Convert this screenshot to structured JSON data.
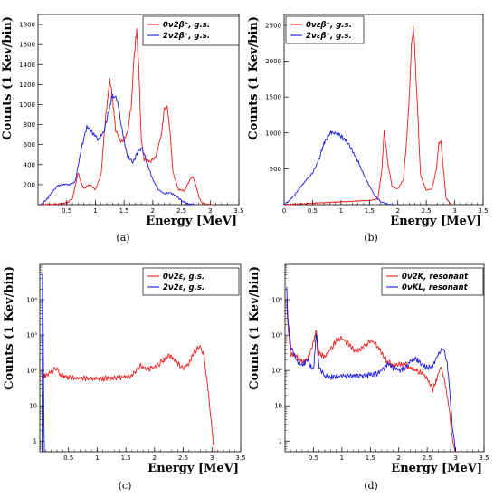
{
  "colors": {
    "red": "#ee1c1c",
    "blue": "#1818e6",
    "axis": "#000000"
  },
  "chart_data": [
    {
      "id": "a",
      "type": "line",
      "caption": "(a)",
      "xlabel": "Energy [MeV]",
      "ylabel": "Counts (1 Kev/bin)",
      "xlim": [
        0,
        3.5
      ],
      "ylim": [
        0,
        1900
      ],
      "yscale": "linear",
      "xticks": [
        "0.5",
        "1",
        "1.5",
        "2",
        "2.5",
        "3",
        "3.5"
      ],
      "xtick_values": [
        0.5,
        1,
        1.5,
        2,
        2.5,
        3,
        3.5
      ],
      "yticks": [
        "200",
        "400",
        "600",
        "800",
        "1000",
        "1200",
        "1400",
        "1600",
        "1800"
      ],
      "ytick_values": [
        200,
        400,
        600,
        800,
        1000,
        1200,
        1400,
        1600,
        1800
      ],
      "legend_position": "top-right",
      "series": [
        {
          "name": "0ν2β⁺, g.s.",
          "color": "red",
          "x": [
            0.05,
            0.3,
            0.5,
            0.6,
            0.7,
            0.75,
            0.8,
            0.9,
            1.0,
            1.1,
            1.15,
            1.2,
            1.25,
            1.3,
            1.35,
            1.45,
            1.55,
            1.62,
            1.68,
            1.72,
            1.76,
            1.8,
            1.85,
            1.95,
            2.05,
            2.15,
            2.2,
            2.25,
            2.3,
            2.35,
            2.45,
            2.55,
            2.65,
            2.7,
            2.75,
            2.8,
            2.85,
            2.95,
            3.05
          ],
          "y": [
            0,
            5,
            15,
            60,
            320,
            220,
            160,
            200,
            150,
            300,
            700,
            1000,
            1250,
            1050,
            750,
            620,
            700,
            950,
            1500,
            1750,
            1300,
            650,
            450,
            430,
            480,
            700,
            950,
            1000,
            750,
            320,
            150,
            140,
            250,
            280,
            200,
            80,
            20,
            0,
            0
          ]
        },
        {
          "name": "2ν2β⁺, g.s.",
          "color": "blue",
          "x": [
            0.05,
            0.15,
            0.25,
            0.35,
            0.45,
            0.55,
            0.65,
            0.75,
            0.85,
            0.95,
            1.05,
            1.15,
            1.25,
            1.3,
            1.38,
            1.45,
            1.55,
            1.65,
            1.75,
            1.82,
            1.9,
            2.0,
            2.1,
            2.2,
            2.3,
            2.4,
            2.5,
            2.6,
            2.7
          ],
          "y": [
            0,
            50,
            130,
            190,
            200,
            200,
            230,
            550,
            780,
            720,
            650,
            730,
            980,
            1100,
            1050,
            800,
            500,
            420,
            540,
            560,
            420,
            250,
            150,
            110,
            120,
            90,
            40,
            10,
            0
          ]
        }
      ]
    },
    {
      "id": "b",
      "type": "line",
      "caption": "(b)",
      "xlabel": "Energy [MeV]",
      "ylabel": "Counts (1 Kev/bin)",
      "xlim": [
        0,
        3.5
      ],
      "ylim": [
        0,
        2650
      ],
      "yscale": "linear",
      "xticks": [
        "0",
        "0.5",
        "1",
        "1.5",
        "2",
        "2.5",
        "3",
        "3.5"
      ],
      "xtick_values": [
        0,
        0.5,
        1,
        1.5,
        2,
        2.5,
        3,
        3.5
      ],
      "yticks": [
        "500",
        "1000",
        "1500",
        "2000",
        "2500"
      ],
      "ytick_values": [
        500,
        1000,
        1500,
        2000,
        2500
      ],
      "legend_position": "top-left",
      "series": [
        {
          "name": "0νεβ⁺, g.s.",
          "color": "red",
          "x": [
            0.0,
            0.5,
            1.0,
            1.5,
            1.65,
            1.72,
            1.76,
            1.82,
            1.9,
            2.0,
            2.1,
            2.18,
            2.25,
            2.28,
            2.32,
            2.4,
            2.5,
            2.6,
            2.68,
            2.72,
            2.76,
            2.8,
            2.85,
            2.95
          ],
          "y": [
            0,
            20,
            40,
            60,
            80,
            500,
            1050,
            600,
            250,
            220,
            350,
            1200,
            2350,
            2450,
            1800,
            400,
            200,
            220,
            500,
            850,
            880,
            500,
            80,
            0
          ]
        },
        {
          "name": "2νεβ⁺, g.s.",
          "color": "blue",
          "x": [
            0.0,
            0.1,
            0.2,
            0.3,
            0.4,
            0.5,
            0.6,
            0.7,
            0.8,
            0.9,
            1.0,
            1.1,
            1.2,
            1.3,
            1.4,
            1.5,
            1.6,
            1.7,
            1.8,
            1.9
          ],
          "y": [
            0,
            60,
            150,
            260,
            350,
            440,
            600,
            850,
            990,
            1000,
            950,
            880,
            760,
            600,
            420,
            260,
            120,
            40,
            10,
            0
          ]
        }
      ]
    },
    {
      "id": "c",
      "type": "line",
      "caption": "(c)",
      "xlabel": "Energy [MeV]",
      "ylabel": "Counts (1 Kev/bin)",
      "xlim": [
        0,
        3.5
      ],
      "ylim": [
        0.5,
        100000
      ],
      "yscale": "log",
      "xticks": [
        "0.5",
        "1",
        "1.5",
        "2",
        "2.5",
        "3",
        "3.5"
      ],
      "xtick_values": [
        0.5,
        1,
        1.5,
        2,
        2.5,
        3,
        3.5
      ],
      "yticks": [
        "1",
        "10",
        "10²",
        "10³",
        "10⁴"
      ],
      "ytick_values": [
        1,
        10,
        100,
        1000,
        10000
      ],
      "legend_position": "top-right",
      "series": [
        {
          "name": "0ν2ε, g.s.",
          "color": "red",
          "x": [
            0.05,
            0.1,
            0.2,
            0.28,
            0.35,
            0.5,
            0.7,
            1.0,
            1.3,
            1.6,
            1.75,
            1.85,
            2.0,
            2.15,
            2.25,
            2.35,
            2.5,
            2.6,
            2.7,
            2.78,
            2.85,
            2.92,
            2.98,
            3.02,
            3.05
          ],
          "y": [
            70,
            75,
            90,
            120,
            80,
            65,
            60,
            60,
            62,
            70,
            140,
            110,
            120,
            200,
            280,
            200,
            110,
            160,
            350,
            480,
            300,
            40,
            5,
            1,
            0.5
          ]
        },
        {
          "name": "2ν2ε, g.s.",
          "color": "blue",
          "x": [
            0.04,
            0.045,
            0.05,
            0.06,
            0.07,
            0.08
          ],
          "y": [
            0.5,
            50000,
            30000,
            1000,
            5,
            0.5
          ]
        }
      ]
    },
    {
      "id": "d",
      "type": "line",
      "caption": "(d)",
      "xlabel": "Energy [MeV]",
      "ylabel": "Counts (1 Kev/bin)",
      "xlim": [
        0,
        3.5
      ],
      "ylim": [
        0.5,
        100000
      ],
      "yscale": "log",
      "xticks": [
        "0.5",
        "1",
        "1.5",
        "2",
        "2.5",
        "3",
        "3.5"
      ],
      "xtick_values": [
        0.5,
        1,
        1.5,
        2,
        2.5,
        3,
        3.5
      ],
      "yticks": [
        "1",
        "10",
        "10²",
        "10³",
        "10⁴"
      ],
      "ytick_values": [
        1,
        10,
        100,
        1000,
        10000
      ],
      "legend_position": "top-right",
      "series": [
        {
          "name": "0ν2K, resonant",
          "color": "red",
          "x": [
            0.03,
            0.05,
            0.1,
            0.2,
            0.3,
            0.4,
            0.5,
            0.55,
            0.6,
            0.7,
            0.8,
            0.9,
            1.0,
            1.1,
            1.2,
            1.3,
            1.4,
            1.5,
            1.6,
            1.7,
            1.8,
            1.9,
            2.0,
            2.1,
            2.2,
            2.3,
            2.4,
            2.5,
            2.6,
            2.7,
            2.75,
            2.8,
            2.85,
            2.9,
            2.95,
            3.0
          ],
          "y": [
            10000,
            2000,
            300,
            250,
            180,
            220,
            600,
            1500,
            300,
            250,
            400,
            700,
            800,
            600,
            400,
            350,
            500,
            700,
            550,
            300,
            180,
            140,
            150,
            160,
            120,
            100,
            90,
            60,
            30,
            80,
            120,
            60,
            20,
            5,
            1,
            0.5
          ]
        },
        {
          "name": "0νKL,  resonant",
          "color": "blue",
          "x": [
            0.03,
            0.05,
            0.1,
            0.2,
            0.3,
            0.4,
            0.5,
            0.55,
            0.6,
            0.7,
            0.8,
            1.0,
            1.2,
            1.4,
            1.6,
            1.7,
            1.8,
            1.9,
            2.0,
            2.1,
            2.2,
            2.3,
            2.4,
            2.5,
            2.6,
            2.7,
            2.78,
            2.85,
            2.9,
            2.95,
            3.0
          ],
          "y": [
            20000,
            3000,
            500,
            200,
            140,
            200,
            100,
            1200,
            120,
            70,
            65,
            70,
            70,
            70,
            80,
            100,
            150,
            120,
            100,
            110,
            180,
            220,
            150,
            120,
            140,
            300,
            420,
            200,
            20,
            2,
            0.5
          ]
        }
      ]
    }
  ]
}
